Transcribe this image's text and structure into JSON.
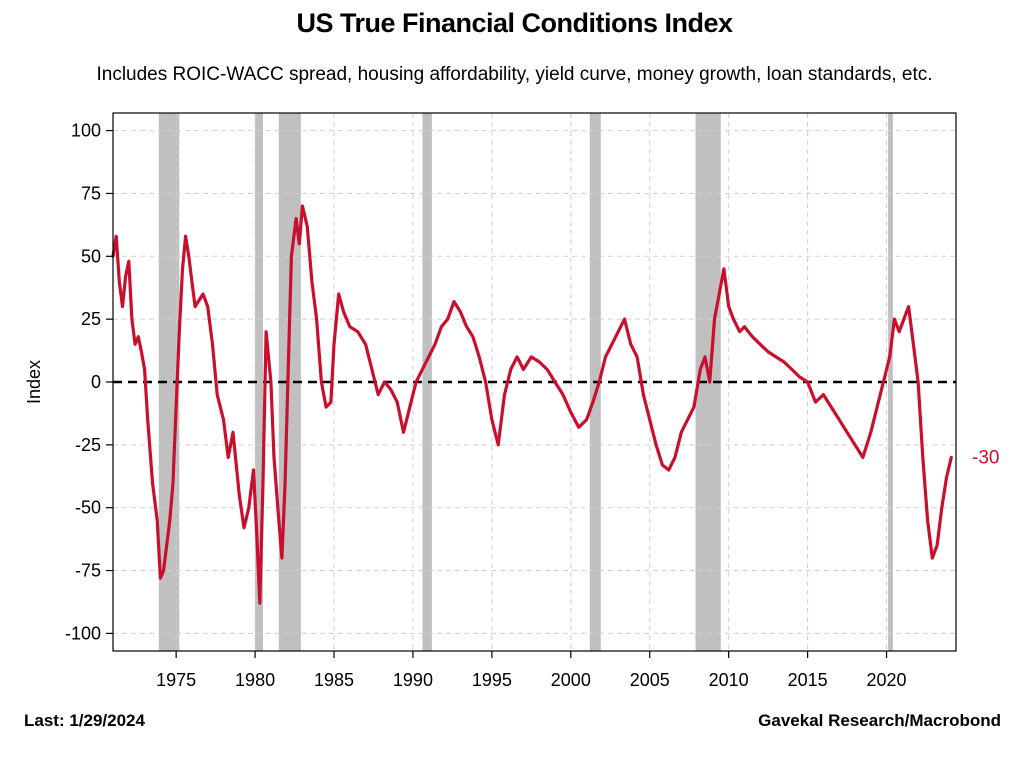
{
  "chart_data": {
    "type": "line",
    "title": "US True Financial Conditions Index",
    "subtitle": "Includes ROIC-WACC spread, housing affordability, yield curve, money growth, loan standards, etc.",
    "ylabel": "Index",
    "xlabel": "",
    "xlim": [
      1971.0,
      2024.4
    ],
    "ylim": [
      -107,
      107
    ],
    "y_ticks": [
      100,
      75,
      50,
      25,
      0,
      -25,
      -50,
      -75,
      -100
    ],
    "x_ticks": [
      1975,
      1980,
      1985,
      1990,
      1995,
      2000,
      2005,
      2010,
      2015,
      2020
    ],
    "grid": true,
    "reference_line": 0,
    "recessions": [
      [
        1973.9,
        1975.2
      ],
      [
        1980.0,
        1980.5
      ],
      [
        1981.5,
        1982.9
      ],
      [
        1990.6,
        1991.2
      ],
      [
        2001.2,
        2001.9
      ],
      [
        2007.9,
        2009.5
      ],
      [
        2020.1,
        2020.4
      ]
    ],
    "series": [
      {
        "name": "",
        "color": "#c8102e",
        "x": [
          1971.0,
          1971.2,
          1971.4,
          1971.6,
          1971.8,
          1972.0,
          1972.2,
          1972.4,
          1972.6,
          1972.8,
          1973.0,
          1973.2,
          1973.5,
          1973.8,
          1974.0,
          1974.2,
          1974.4,
          1974.6,
          1974.8,
          1975.0,
          1975.2,
          1975.4,
          1975.6,
          1975.8,
          1976.0,
          1976.2,
          1976.4,
          1976.7,
          1977.0,
          1977.3,
          1977.6,
          1978.0,
          1978.3,
          1978.6,
          1979.0,
          1979.3,
          1979.6,
          1979.9,
          1980.1,
          1980.3,
          1980.5,
          1980.7,
          1981.0,
          1981.2,
          1981.5,
          1981.7,
          1981.9,
          1982.1,
          1982.3,
          1982.6,
          1982.8,
          1983.0,
          1983.3,
          1983.6,
          1983.9,
          1984.2,
          1984.5,
          1984.8,
          1985.0,
          1985.3,
          1985.6,
          1986.0,
          1986.5,
          1987.0,
          1987.4,
          1987.8,
          1988.2,
          1988.6,
          1989.0,
          1989.4,
          1989.8,
          1990.2,
          1990.6,
          1991.0,
          1991.4,
          1991.8,
          1992.2,
          1992.6,
          1993.0,
          1993.4,
          1993.8,
          1994.2,
          1994.6,
          1995.0,
          1995.4,
          1995.8,
          1996.2,
          1996.6,
          1997.0,
          1997.5,
          1998.0,
          1998.5,
          1999.0,
          1999.5,
          2000.0,
          2000.5,
          2001.0,
          2001.4,
          2001.8,
          2002.2,
          2002.6,
          2003.0,
          2003.4,
          2003.8,
          2004.2,
          2004.6,
          2005.0,
          2005.4,
          2005.8,
          2006.2,
          2006.6,
          2007.0,
          2007.4,
          2007.8,
          2008.2,
          2008.5,
          2008.8,
          2009.1,
          2009.4,
          2009.7,
          2010.0,
          2010.3,
          2010.7,
          2011.0,
          2011.5,
          2012.0,
          2012.5,
          2013.0,
          2013.5,
          2014.0,
          2014.5,
          2015.0,
          2015.5,
          2016.0,
          2016.5,
          2017.0,
          2017.5,
          2018.0,
          2018.5,
          2019.0,
          2019.4,
          2019.8,
          2020.2,
          2020.5,
          2020.8,
          2021.1,
          2021.4,
          2021.7,
          2022.0,
          2022.3,
          2022.6,
          2022.9,
          2023.2,
          2023.5,
          2023.8,
          2024.1
        ],
        "values": [
          50,
          58,
          40,
          30,
          42,
          48,
          25,
          15,
          18,
          12,
          5,
          -15,
          -40,
          -55,
          -78,
          -75,
          -65,
          -55,
          -40,
          -10,
          20,
          45,
          58,
          50,
          40,
          30,
          32,
          35,
          30,
          15,
          -5,
          -15,
          -30,
          -20,
          -45,
          -58,
          -50,
          -35,
          -60,
          -88,
          -40,
          20,
          0,
          -30,
          -55,
          -70,
          -40,
          5,
          50,
          65,
          55,
          70,
          62,
          40,
          25,
          0,
          -10,
          -8,
          15,
          35,
          28,
          22,
          20,
          15,
          5,
          -5,
          0,
          -3,
          -8,
          -20,
          -10,
          0,
          5,
          10,
          15,
          22,
          25,
          32,
          28,
          22,
          18,
          10,
          0,
          -15,
          -25,
          -5,
          5,
          10,
          5,
          10,
          8,
          5,
          0,
          -5,
          -12,
          -18,
          -15,
          -8,
          0,
          10,
          15,
          20,
          25,
          15,
          10,
          -5,
          -15,
          -25,
          -33,
          -35,
          -30,
          -20,
          -15,
          -10,
          5,
          10,
          0,
          25,
          35,
          45,
          30,
          25,
          20,
          22,
          18,
          15,
          12,
          10,
          8,
          5,
          2,
          0,
          -8,
          -5,
          -10,
          -15,
          -20,
          -25,
          -30,
          -20,
          -10,
          0,
          10,
          25,
          20,
          25,
          30,
          15,
          0,
          -30,
          -55,
          -70,
          -65,
          -50,
          -38,
          -30
        ]
      }
    ],
    "last_value_label": "-30",
    "source_left": "Last: 1/29/2024",
    "source_right": "Gavekal Research/Macrobond"
  }
}
